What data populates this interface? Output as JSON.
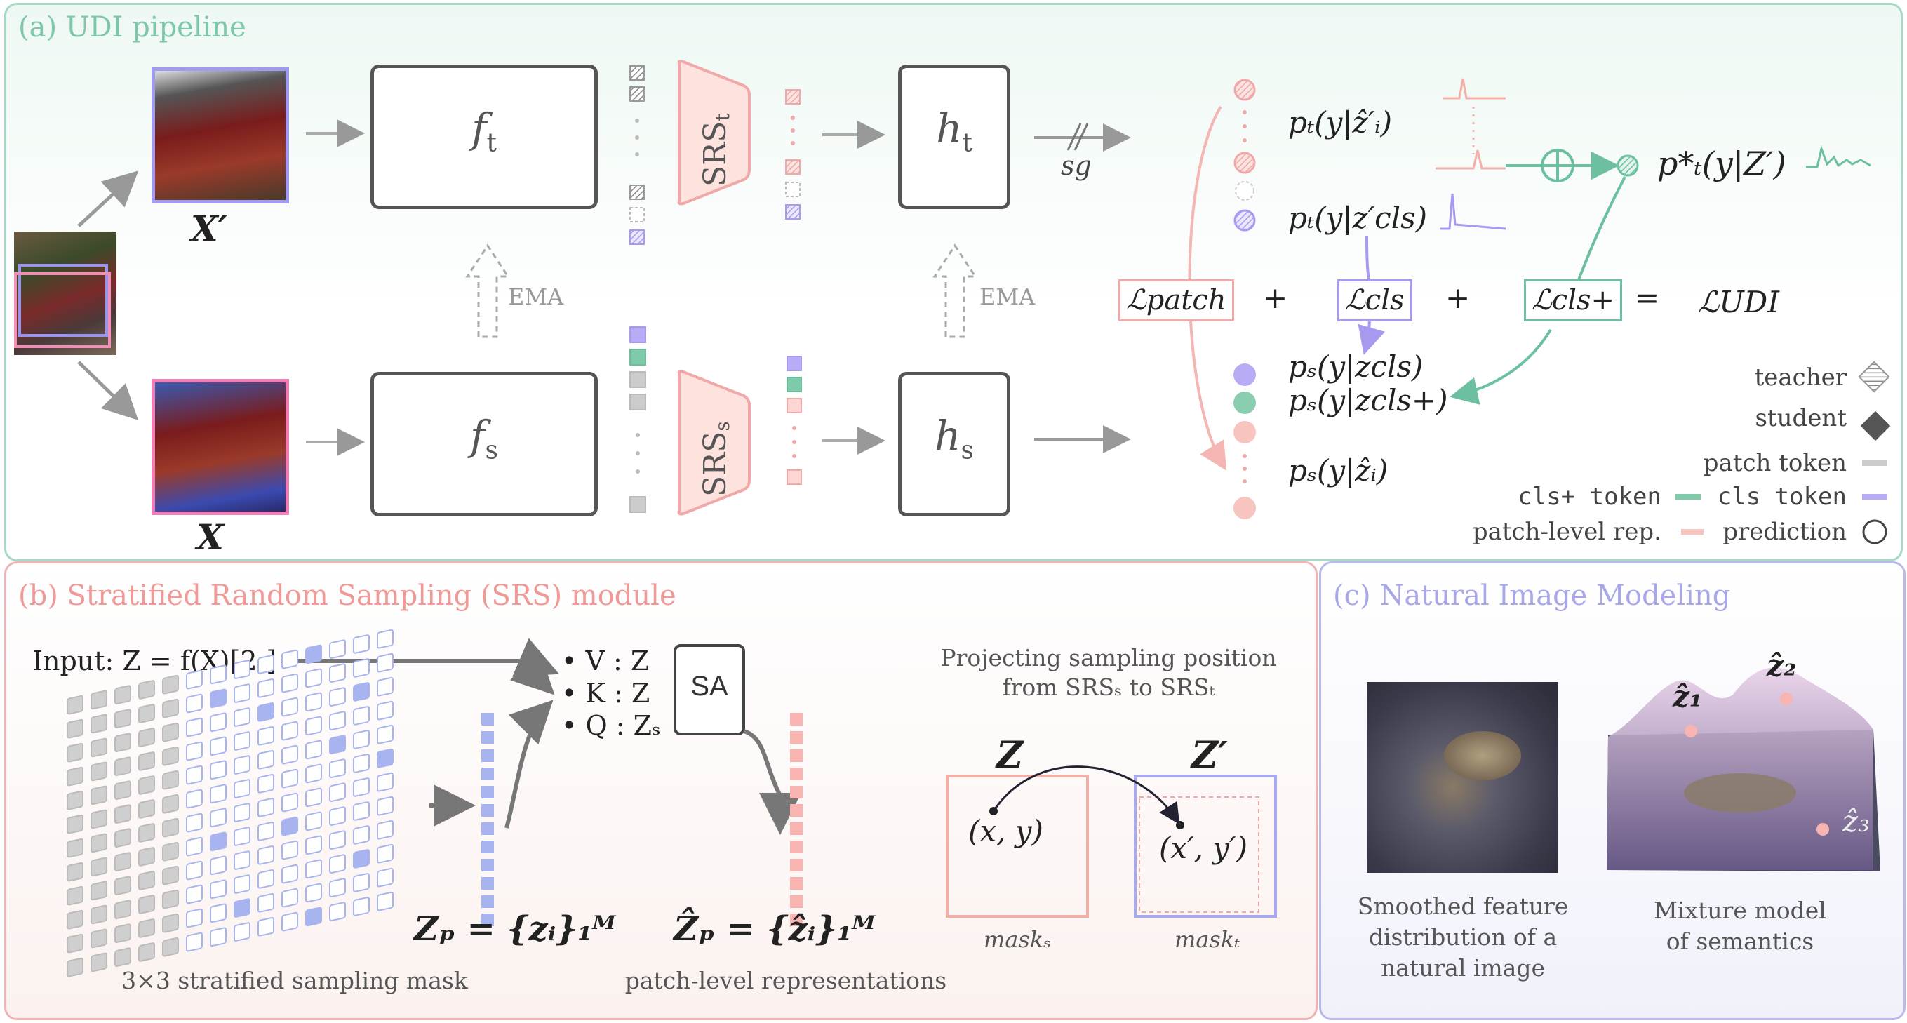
{
  "panel_a": {
    "title": "(a) UDI pipeline",
    "x_prime": "X′",
    "x": "X",
    "ft": "f",
    "ft_sub": "t",
    "fs": "f",
    "fs_sub": "s",
    "ht": "h",
    "ht_sub": "t",
    "hs": "h",
    "hs_sub": "s",
    "srs_t": "SRS",
    "srs_t_sub": "t",
    "srs_s": "SRS",
    "srs_s_sub": "s",
    "ema_top": "EMA",
    "ema_bottom": "EMA",
    "sg": "sg",
    "pt_patch": "pₜ(y|ẑ′ᵢ)",
    "pt_cls": "pₜ(y|z′cls)",
    "pt_star": "p*ₜ(y|Z′)",
    "ps_cls": "pₛ(y|zcls)",
    "ps_clsplus": "pₛ(y|zcls+)",
    "ps_patch": "pₛ(y|ẑᵢ)",
    "loss_patch": "ℒpatch",
    "loss_cls": "ℒcls",
    "loss_clsplus": "ℒcls+",
    "loss_udi": "ℒUDI",
    "plus1": "+",
    "plus2": "+",
    "equals": "=",
    "legend": {
      "teacher": "teacher",
      "student": "student",
      "patch_token": "patch token",
      "clsplus_token": "cls+ token",
      "cls_token": "cls token",
      "patch_rep": "patch-level rep.",
      "prediction": "prediction"
    }
  },
  "panel_b": {
    "title": "(b) Stratified Random Sampling (SRS) module",
    "input": "Input: Z = f(X)[2:]",
    "v": "• V : Z",
    "k": "• K : Z",
    "q": "• Q : Zₛ",
    "sa": "SA",
    "zp": "Zₚ = {zᵢ}₁ᴹ",
    "zhat_p": "Ẑₚ = {ẑᵢ}₁ᴹ",
    "mask_caption": "3×3 stratified sampling mask",
    "rep_caption": "patch-level representations",
    "proj_line1": "Projecting sampling position",
    "proj_line2": "from SRSₛ to SRSₜ",
    "z_label": "Z",
    "zprime_label": "Z′",
    "xy": "(x, y)",
    "xyprime": "(x′, y′)",
    "mask_s": "maskₛ",
    "mask_t": "maskₜ"
  },
  "panel_c": {
    "title": "(c) Natural Image Modeling",
    "cap1_l1": "Smoothed feature",
    "cap1_l2": "distribution of a",
    "cap1_l3": "natural image",
    "cap2_l1": "Mixture model",
    "cap2_l2": "of semantics",
    "z1": "ẑ₁",
    "z2": "ẑ₂",
    "z3": "ẑ₃"
  },
  "colors": {
    "teal": "#6cc0a0",
    "pink": "#f0a8a8",
    "purple": "#a89af0",
    "gray": "#999999"
  }
}
